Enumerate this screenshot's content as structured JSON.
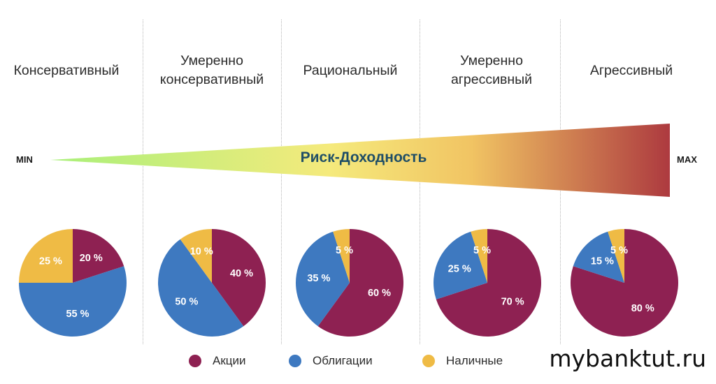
{
  "chart_data": {
    "type": "pie",
    "categories": [
      "Консервативный",
      "Умеренно\nконсервативный",
      "Рациональный",
      "Умеренно\nагрессивный",
      "Агрессивный"
    ],
    "series": [
      {
        "name": "Акции",
        "values": [
          20,
          40,
          60,
          70,
          80
        ]
      },
      {
        "name": "Облигации",
        "values": [
          55,
          50,
          35,
          25,
          15
        ]
      },
      {
        "name": "Наличные",
        "values": [
          25,
          10,
          5,
          5,
          5
        ]
      }
    ],
    "slice_labels": [
      "20 %",
      "55 %",
      "25 %",
      "40 %",
      "50 %",
      "10 %",
      "60 %",
      "35 %",
      "5 %",
      "70 %",
      "25 %",
      "5 %",
      "80 %",
      "15 %",
      "5 %"
    ],
    "colors": {
      "Акции": "#8e2152",
      "Облигации": "#3e79c0",
      "Наличные": "#efbb45"
    },
    "scale": {
      "label": "Риск-Доходность",
      "min_label": "MIN",
      "max_label": "MAX",
      "gradient": [
        "#a9f07a",
        "#f5ea7c",
        "#f1c463",
        "#ad3a3f"
      ]
    },
    "legend_position": "bottom"
  },
  "legend": {
    "items": [
      {
        "label": "Акции",
        "color": "#8e2152"
      },
      {
        "label": "Облигации",
        "color": "#3e79c0"
      },
      {
        "label": "Наличные",
        "color": "#efbb45"
      }
    ]
  },
  "watermark": "mybanktut.ru"
}
